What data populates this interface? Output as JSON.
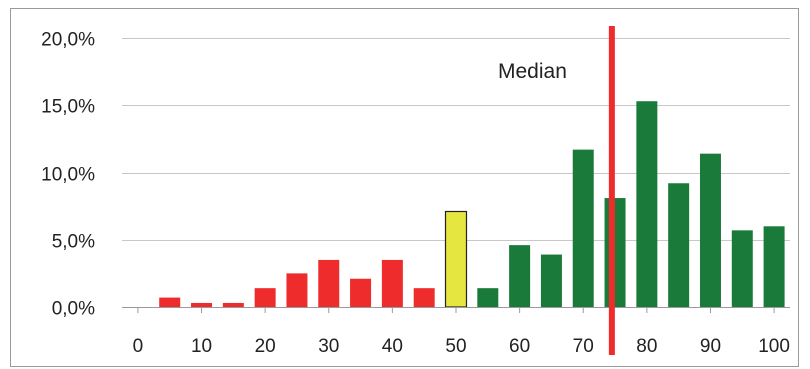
{
  "chart_data": {
    "type": "bar",
    "title": "",
    "xlabel": "",
    "ylabel": "",
    "x": [
      0,
      5,
      10,
      15,
      20,
      25,
      30,
      35,
      40,
      45,
      50,
      55,
      60,
      65,
      70,
      75,
      80,
      85,
      90,
      95,
      100
    ],
    "values": [
      0.0,
      0.7,
      0.3,
      0.3,
      1.4,
      2.5,
      3.5,
      2.1,
      3.5,
      1.4,
      7.1,
      1.4,
      4.6,
      3.9,
      11.7,
      8.1,
      15.3,
      9.2,
      11.4,
      5.7,
      6.0
    ],
    "bar_groups": [
      "none",
      "red",
      "red",
      "red",
      "red",
      "red",
      "red",
      "red",
      "red",
      "red",
      "yellow",
      "green",
      "green",
      "green",
      "green",
      "green",
      "green",
      "green",
      "green",
      "green",
      "green"
    ],
    "group_colors": {
      "red": "#ee2c2c",
      "yellow": "#e6e640",
      "green": "#1a7a3a",
      "none": "#ffffff"
    },
    "xlim": [
      -2.5,
      102.5
    ],
    "ylim": [
      0,
      20
    ],
    "x_ticks": [
      0,
      10,
      20,
      30,
      40,
      50,
      60,
      70,
      80,
      90,
      100
    ],
    "x_tick_labels": [
      "0",
      "10",
      "20",
      "30",
      "40",
      "50",
      "60",
      "70",
      "80",
      "90",
      "100"
    ],
    "y_ticks": [
      0,
      5,
      10,
      15,
      20
    ],
    "y_tick_labels": [
      "0,0%",
      "5,0%",
      "10,0%",
      "15,0%",
      "20,0%"
    ],
    "grid": true,
    "median": {
      "x": 74.5,
      "label": "Median",
      "color": "#ee2c2c"
    }
  }
}
